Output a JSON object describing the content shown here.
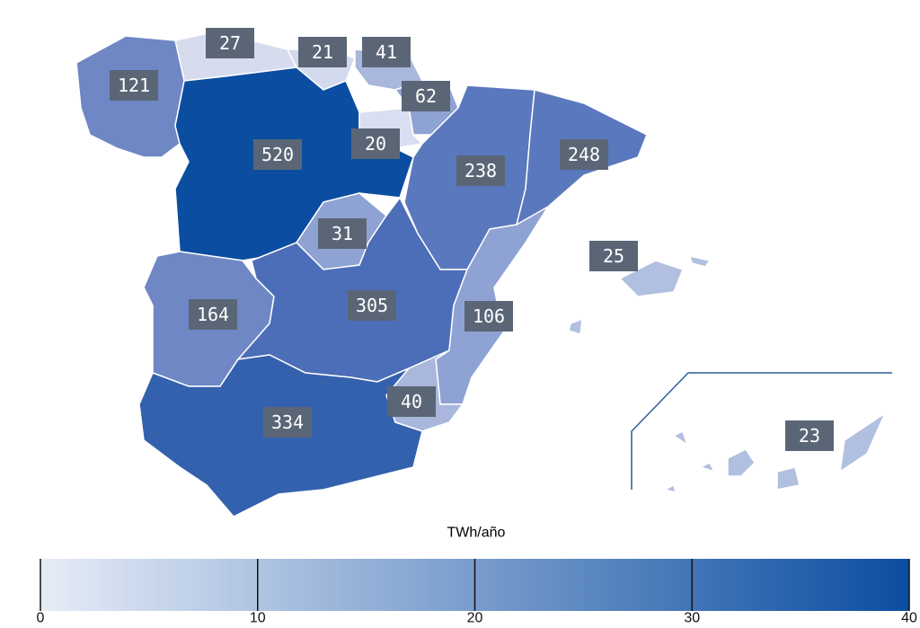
{
  "map": {
    "regions": [
      {
        "value": 27,
        "color": "#d6dcee"
      },
      {
        "value": 21,
        "color": "#d3daed"
      },
      {
        "value": 41,
        "color": "#a9b7dc"
      },
      {
        "value": 121,
        "color": "#6f87c4"
      },
      {
        "value": 62,
        "color": "#8ea2d3"
      },
      {
        "value": 520,
        "color": "#0b4da1"
      },
      {
        "value": 20,
        "color": "#d9dff0"
      },
      {
        "value": 238,
        "color": "#5a78bd"
      },
      {
        "value": 248,
        "color": "#5a78bd"
      },
      {
        "value": 31,
        "color": "#8ea2d3"
      },
      {
        "value": 25,
        "color": "#b1bfe0"
      },
      {
        "value": 164,
        "color": "#6f87c4"
      },
      {
        "value": 305,
        "color": "#4c6db8"
      },
      {
        "value": 106,
        "color": "#8ea2d3"
      },
      {
        "value": 40,
        "color": "#a9b7dc"
      },
      {
        "value": 334,
        "color": "#3461ad"
      },
      {
        "value": 23,
        "color": "#b1bfe0"
      }
    ]
  },
  "legend": {
    "title": "TWh/año",
    "lim": [
      0,
      40
    ],
    "ticks": [
      0,
      10,
      20,
      30,
      40
    ],
    "colors": [
      "#e6ecf7",
      "#0b4da1"
    ]
  }
}
